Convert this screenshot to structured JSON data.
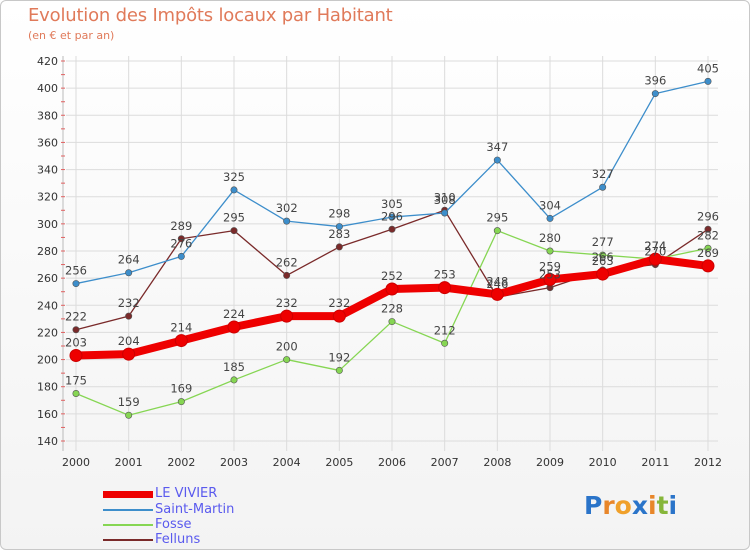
{
  "chart_data": {
    "type": "line",
    "title": "Evolution des Impôts locaux par Habitant",
    "subtitle": "(en € et par an)",
    "x": [
      "2000",
      "2001",
      "2002",
      "2003",
      "2004",
      "2005",
      "2006",
      "2007",
      "2008",
      "2009",
      "2010",
      "2011",
      "2012"
    ],
    "ylim": [
      140,
      420
    ],
    "yticks": [
      140,
      160,
      180,
      200,
      220,
      240,
      260,
      280,
      300,
      320,
      340,
      360,
      380,
      400,
      420
    ],
    "series": [
      {
        "name": "LE VIVIER",
        "color": "#ee0000",
        "values": [
          203,
          204,
          214,
          224,
          232,
          232,
          252,
          253,
          248,
          259,
          263,
          274,
          269
        ],
        "labels": [
          "203",
          "204",
          "214",
          "224",
          "232",
          "232",
          "252",
          "253",
          "248",
          "259",
          "263",
          "274",
          "269"
        ]
      },
      {
        "name": "Saint-Martin",
        "color": "#3d8ecb",
        "values": [
          256,
          264,
          276,
          325,
          302,
          298,
          305,
          308,
          347,
          304,
          327,
          396,
          405
        ],
        "labels": [
          "256",
          "264",
          "276",
          "325",
          "302",
          "298",
          "305",
          "308",
          "347",
          "304",
          "327",
          "396",
          "405"
        ]
      },
      {
        "name": "Fosse",
        "color": "#86d653",
        "values": [
          175,
          159,
          169,
          185,
          200,
          192,
          228,
          212,
          295,
          280,
          277,
          274,
          282
        ],
        "labels": [
          "175",
          "159",
          "169",
          "185",
          "200",
          "192",
          "228",
          "212",
          "295",
          "280",
          "277",
          "274",
          "282"
        ]
      },
      {
        "name": "Felluns",
        "color": "#7a2a2a",
        "values": [
          222,
          232,
          289,
          295,
          262,
          283,
          296,
          310,
          246,
          253,
          266,
          270,
          296
        ],
        "labels": [
          "222",
          "232",
          "289",
          "295",
          "262",
          "283",
          "296",
          "310",
          "246",
          "253",
          "266",
          "270",
          "296"
        ]
      }
    ]
  },
  "legend": {
    "items": [
      {
        "label": "LE VIVIER",
        "color": "#ee0000"
      },
      {
        "label": "Saint-Martin",
        "color": "#3d8ecb"
      },
      {
        "label": "Fosse",
        "color": "#86d653"
      },
      {
        "label": "Felluns",
        "color": "#7a2a2a"
      }
    ]
  },
  "logo": {
    "text": "Proxiti",
    "letters": [
      "P",
      "r",
      "o",
      "x",
      "i",
      "t",
      "i"
    ],
    "colors": [
      "#2a74c9",
      "#e8862a",
      "#f0a02a",
      "#2a74c9",
      "#e8862a",
      "#86b63a",
      "#2a74c9"
    ]
  }
}
